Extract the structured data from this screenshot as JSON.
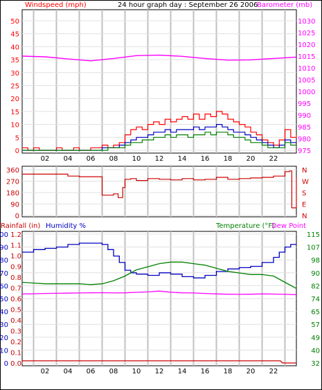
{
  "header": {
    "left_title": "Windspeed (mph)",
    "center_title": "24 hour graph day : September 26 2006",
    "right_title": "Barometer (mb)"
  },
  "bottom_header": {
    "rainfall_label": "Rainfall (in)",
    "humidity_label": "Humidity %",
    "temperature_label": "Temperature (°F)",
    "dewpoint_label": "Dew Point"
  },
  "colors": {
    "windspeed": "#ff0000",
    "average": "#0000c0",
    "gust": "#008000",
    "barometer": "#ff00ff",
    "direction": "#cc0000",
    "humidity": "#0000c0",
    "temperature": "#008000",
    "dewpoint": "#ff00ff",
    "rainfall": "#cc0000",
    "grid": "#c0c0c0"
  },
  "chart_data": [
    {
      "type": "line",
      "name": "wind-barometer",
      "x_ticks": [
        "02",
        "04",
        "06",
        "08",
        "10",
        "12",
        "14",
        "16",
        "18",
        "20",
        "22"
      ],
      "left_axis": {
        "title": "Windspeed (mph)",
        "ylim": [
          0,
          50
        ],
        "ticks": [
          "50",
          "45",
          "40",
          "35",
          "30",
          "25",
          "20",
          "15",
          "10",
          "5",
          "0"
        ]
      },
      "right_axis": {
        "title": "Barometer (mb)",
        "ylim": [
          975,
          1030
        ],
        "ticks": [
          "1030",
          "1025",
          "1020",
          "1015",
          "1010",
          "1005",
          "1000",
          "995",
          "990",
          "985",
          "980",
          "975"
        ]
      },
      "series": [
        {
          "key": "barometer",
          "axis": "right",
          "x": [
            0,
            2,
            4,
            6,
            8,
            10,
            12,
            14,
            16,
            18,
            20,
            22,
            24
          ],
          "y": [
            1015.0,
            1014.7,
            1013.8,
            1013.0,
            1014.0,
            1015.2,
            1015.4,
            1014.9,
            1014.0,
            1013.3,
            1013.4,
            1014.0,
            1014.6
          ]
        },
        {
          "key": "windspeed",
          "axis": "left",
          "step": true,
          "x": [
            0,
            0.5,
            1,
            1.5,
            2,
            2.5,
            3,
            3.5,
            4,
            4.5,
            5,
            5.5,
            6,
            6.5,
            7,
            7.5,
            8,
            8.5,
            9,
            9.5,
            10,
            10.5,
            11,
            11.5,
            12,
            12.5,
            13,
            13.5,
            14,
            14.5,
            15,
            15.5,
            16,
            16.5,
            17,
            17.5,
            18,
            18.5,
            19,
            19.5,
            20,
            20.5,
            21,
            21.5,
            22,
            22.5,
            23,
            23.5,
            24
          ],
          "y": [
            1,
            0,
            1,
            0,
            0,
            0,
            1,
            0,
            0,
            1,
            0,
            0,
            1,
            1,
            2,
            1,
            2,
            3,
            6,
            8,
            9,
            8,
            10,
            11,
            10,
            12,
            11,
            12,
            13,
            12,
            14,
            12,
            14,
            13,
            15,
            14,
            12,
            11,
            10,
            9,
            7,
            6,
            4,
            3,
            2,
            4,
            8,
            5,
            6
          ]
        },
        {
          "key": "average",
          "axis": "left",
          "step": true,
          "x": [
            0,
            0.5,
            1,
            1.5,
            2,
            2.5,
            3,
            3.5,
            4,
            4.5,
            5,
            5.5,
            6,
            6.5,
            7,
            7.5,
            8,
            8.5,
            9,
            9.5,
            10,
            10.5,
            11,
            11.5,
            12,
            12.5,
            13,
            13.5,
            14,
            14.5,
            15,
            15.5,
            16,
            16.5,
            17,
            17.5,
            18,
            18.5,
            19,
            19.5,
            20,
            20.5,
            21,
            21.5,
            22,
            22.5,
            23,
            23.5,
            24
          ],
          "y": [
            0,
            0,
            0,
            0,
            0,
            0,
            0,
            0,
            0,
            0,
            0,
            0,
            0,
            0,
            1,
            1,
            1,
            2,
            3,
            4,
            5,
            5,
            6,
            7,
            7,
            8,
            7,
            8,
            8,
            8,
            9,
            8,
            9,
            9,
            10,
            9,
            8,
            7,
            7,
            6,
            5,
            4,
            3,
            2,
            1,
            2,
            4,
            3,
            3
          ]
        },
        {
          "key": "gust",
          "axis": "left",
          "step": true,
          "x": [
            0,
            0.5,
            1,
            1.5,
            2,
            2.5,
            3,
            3.5,
            4,
            4.5,
            5,
            5.5,
            6,
            6.5,
            7,
            7.5,
            8,
            8.5,
            9,
            9.5,
            10,
            10.5,
            11,
            11.5,
            12,
            12.5,
            13,
            13.5,
            14,
            14.5,
            15,
            15.5,
            16,
            16.5,
            17,
            17.5,
            18,
            18.5,
            19,
            19.5,
            20,
            20.5,
            21,
            21.5,
            22,
            22.5,
            23,
            23.5,
            24
          ],
          "y": [
            0,
            0,
            0,
            0,
            0,
            0,
            0,
            0,
            0,
            0,
            0,
            0,
            0,
            0,
            0,
            1,
            1,
            1,
            2,
            3,
            3,
            4,
            4,
            5,
            5,
            6,
            5,
            6,
            6,
            5,
            6,
            6,
            7,
            6,
            7,
            7,
            6,
            5,
            5,
            4,
            3,
            3,
            2,
            1,
            1,
            1,
            3,
            2,
            2
          ]
        }
      ]
    },
    {
      "type": "line",
      "name": "wind-direction",
      "left_axis": {
        "ylim": [
          0,
          360
        ],
        "ticks": [
          "360",
          "270",
          "180",
          "90",
          "0"
        ]
      },
      "right_axis": {
        "ticks": [
          "N",
          "W",
          "S",
          "E",
          "N"
        ]
      },
      "series": [
        {
          "key": "direction",
          "axis": "left",
          "step": true,
          "x": [
            0,
            1,
            2,
            3,
            4,
            5,
            6,
            7,
            7.6,
            8,
            8.4,
            8.8,
            9,
            9.5,
            10,
            11,
            12,
            13,
            14,
            15,
            16,
            17,
            18,
            19,
            20,
            21,
            22,
            23,
            23.4,
            23.6,
            24
          ],
          "y": [
            325,
            325,
            325,
            325,
            310,
            305,
            305,
            160,
            160,
            170,
            140,
            220,
            285,
            290,
            275,
            290,
            285,
            280,
            290,
            280,
            285,
            300,
            285,
            290,
            295,
            300,
            310,
            345,
            350,
            60,
            300
          ]
        }
      ]
    },
    {
      "type": "line",
      "name": "rain-humidity-temperature",
      "x_ticks": [
        "02",
        "04",
        "06",
        "08",
        "10",
        "12",
        "14",
        "16",
        "18",
        "20",
        "22"
      ],
      "left_axis_humidity": {
        "title": "Humidity %",
        "ylim": [
          0,
          100
        ],
        "ticks": [
          "100",
          "90",
          "80",
          "70",
          "60",
          "50",
          "40",
          "30",
          "20",
          "10",
          "0"
        ]
      },
      "left_axis_rainfall": {
        "title": "Rainfall (in)",
        "ylim": [
          0.0,
          1.2
        ],
        "ticks": [
          "1.2",
          "1.1",
          "1.0",
          "0.9",
          "0.8",
          "0.7",
          "0.6",
          "0.5",
          "0.4",
          "0.3",
          "0.2",
          "0.1",
          "0.0"
        ]
      },
      "right_axis": {
        "title": "Temperature (°F)",
        "ylim": [
          32,
          115
        ],
        "ticks": [
          "115",
          "107",
          "98",
          "90",
          "82",
          "74",
          "65",
          "57",
          "49",
          "40",
          "32"
        ]
      },
      "series": [
        {
          "key": "humidity",
          "axis": "humidity",
          "step": true,
          "x": [
            0,
            1,
            2,
            3,
            4,
            5,
            6,
            7,
            7.5,
            8,
            8.5,
            9,
            9.5,
            10,
            11,
            12,
            13,
            14,
            15,
            16,
            17,
            18,
            19,
            20,
            21,
            22,
            22.5,
            23,
            23.5,
            24
          ],
          "y": [
            86,
            88,
            89,
            90,
            92,
            93,
            93,
            92,
            88,
            83,
            78,
            72,
            70,
            69,
            68,
            70,
            69,
            67,
            66,
            68,
            71,
            73,
            74,
            75,
            78,
            82,
            86,
            90,
            92,
            92
          ]
        },
        {
          "key": "temperature",
          "axis": "right",
          "x": [
            0,
            1,
            2,
            3,
            4,
            5,
            6,
            7,
            8,
            9,
            10,
            11,
            12,
            13,
            14,
            15,
            16,
            17,
            18,
            19,
            20,
            21,
            22,
            23,
            24
          ],
          "y": [
            84,
            83.5,
            83,
            83,
            83,
            83,
            82.5,
            83,
            85,
            88,
            92,
            94,
            96,
            97,
            97,
            96,
            95,
            93,
            91,
            90,
            89,
            89,
            88,
            84,
            80
          ]
        },
        {
          "key": "dewpoint",
          "axis": "right",
          "x": [
            0,
            1,
            2,
            3,
            4,
            5,
            6,
            7,
            8,
            9,
            10,
            11,
            12,
            13,
            14,
            15,
            16,
            17,
            18,
            19,
            20,
            21,
            22,
            23,
            24
          ],
          "y": [
            76.5,
            76.6,
            76.8,
            76.9,
            77,
            77.1,
            77.2,
            77.3,
            77.1,
            77.2,
            77.5,
            77.8,
            78.3,
            77.6,
            77.2,
            77.1,
            76.8,
            76.5,
            76.3,
            76.2,
            76.3,
            76.5,
            76.4,
            76.2,
            76
          ]
        },
        {
          "key": "rainfall",
          "axis": "rainfall",
          "x": [
            0,
            22.6,
            22.8,
            24
          ],
          "y": [
            0.02,
            0.02,
            0.0,
            0.0
          ]
        }
      ]
    }
  ]
}
